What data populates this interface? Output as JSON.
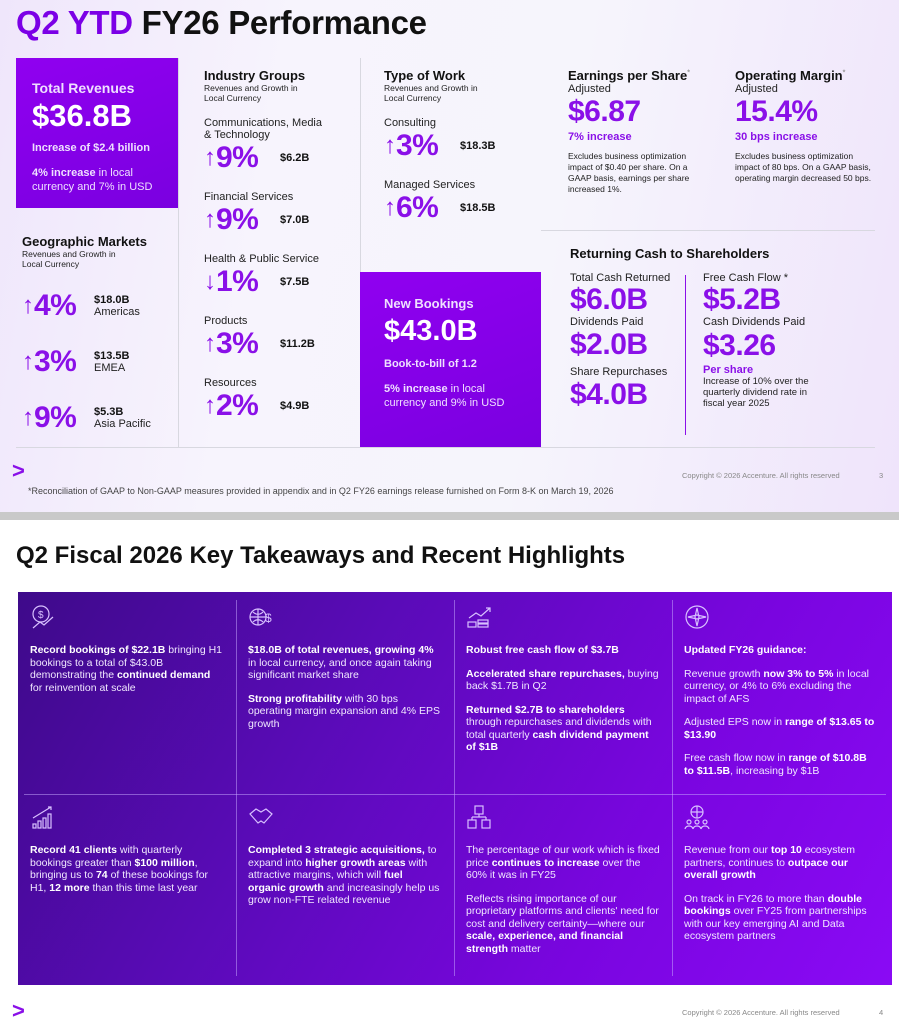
{
  "slide1": {
    "title_accent": "Q2 YTD",
    "title_rest": "FY26 Performance",
    "total_revenues": {
      "label": "Total Revenues",
      "value": "$36.8B",
      "increase": "Increase of $2.4 billion",
      "growth_bold": "4% increase",
      "growth_rest": " in local currency and 7% in USD"
    },
    "geographic": {
      "title": "Geographic Markets",
      "subtitle": "Revenues and Growth in Local Currency",
      "items": [
        {
          "dir": "up",
          "pct": "4%",
          "amount": "$18.0B",
          "name": "Americas"
        },
        {
          "dir": "up",
          "pct": "3%",
          "amount": "$13.5B",
          "name": "EMEA"
        },
        {
          "dir": "up",
          "pct": "9%",
          "amount": "$5.3B",
          "name": "Asia Pacific"
        }
      ]
    },
    "industry": {
      "title": "Industry Groups",
      "subtitle": "Revenues and Growth in Local Currency",
      "items": [
        {
          "name": "Communications, Media & Technology",
          "dir": "up",
          "pct": "9%",
          "amount": "$6.2B"
        },
        {
          "name": "Financial Services",
          "dir": "up",
          "pct": "9%",
          "amount": "$7.0B"
        },
        {
          "name": "Health & Public Service",
          "dir": "down",
          "pct": "1%",
          "amount": "$7.5B"
        },
        {
          "name": "Products",
          "dir": "up",
          "pct": "3%",
          "amount": "$11.2B"
        },
        {
          "name": "Resources",
          "dir": "up",
          "pct": "2%",
          "amount": "$4.9B"
        }
      ]
    },
    "work": {
      "title": "Type of Work",
      "subtitle": "Revenues and Growth in Local Currency",
      "items": [
        {
          "name": "Consulting",
          "dir": "up",
          "pct": "3%",
          "amount": "$18.3B"
        },
        {
          "name": "Managed Services",
          "dir": "up",
          "pct": "6%",
          "amount": "$18.5B"
        }
      ]
    },
    "bookings": {
      "label": "New Bookings",
      "value": "$43.0B",
      "ratio": "Book-to-bill of 1.2",
      "growth_bold": "5% increase",
      "growth_rest": " in local currency and 9% in USD"
    },
    "eps": {
      "title": "Earnings per Share",
      "mark": "*",
      "sub": "Adjusted",
      "value": "$6.87",
      "change": "7% increase",
      "note": "Excludes business optimization impact of $0.40 per share. On a GAAP basis, earnings per share increased 1%."
    },
    "margin": {
      "title": "Operating Margin",
      "mark": "*",
      "sub": "Adjusted",
      "value": "15.4%",
      "change": "30 bps increase",
      "note": "Excludes business optimization impact of 80 bps. On a GAAP basis, operating margin decreased 50 bps."
    },
    "cash": {
      "title": "Returning Cash to Shareholders",
      "total_label": "Total Cash Returned",
      "total": "$6.0B",
      "div_label": "Dividends Paid",
      "div": "$2.0B",
      "rep_label": "Share Repurchases",
      "rep": "$4.0B",
      "fcf_label": "Free Cash Flow *",
      "fcf": "$5.2B",
      "cdiv_label": "Cash Dividends Paid",
      "cdiv": "$3.26",
      "per_share": "Per share",
      "cdiv_note": "Increase of 10% over the quarterly dividend rate in fiscal year 2025"
    },
    "logo": ">",
    "copyright": "Copyright © 2026 Accenture. All rights reserved",
    "page": "3",
    "footnote": "*Reconciliation of GAAP to Non-GAAP measures provided in appendix and in Q2 FY26 earnings release furnished on Form 8-K on March 19, 2026"
  },
  "slide2": {
    "title": "Q2 Fiscal 2026 Key Takeaways and Recent Highlights",
    "cells": [
      {
        "icon": "dollar-growth-icon",
        "paras": [
          [
            {
              "t": "Record bookings of $22.1B",
              "b": true
            },
            {
              "t": " bringing H1 bookings to a total of $43.0B demonstrating the "
            },
            {
              "t": "continued demand",
              "b": true
            },
            {
              "t": " for reinvention at scale"
            }
          ]
        ]
      },
      {
        "icon": "globe-dollar-icon",
        "paras": [
          [
            {
              "t": "$18.0B of total revenues, growing 4%",
              "b": true
            },
            {
              "t": " in local currency, and once again taking significant market share"
            }
          ],
          [
            {
              "t": "Strong profitability",
              "b": true
            },
            {
              "t": " with 30 bps operating margin expansion and 4% EPS growth"
            }
          ]
        ]
      },
      {
        "icon": "cash-growth-icon",
        "paras": [
          [
            {
              "t": "Robust free cash flow of $3.7B",
              "b": true
            }
          ],
          [
            {
              "t": "Accelerated share repurchases,",
              "b": true
            },
            {
              "t": " buying back $1.7B in Q2"
            }
          ],
          [
            {
              "t": "Returned $2.7B to shareholders",
              "b": true
            },
            {
              "t": " through repurchases and dividends with total quarterly "
            },
            {
              "t": "cash dividend payment of $1B",
              "b": true
            }
          ]
        ]
      },
      {
        "icon": "compass-icon",
        "paras": [
          [
            {
              "t": "Updated FY26 guidance:",
              "b": true
            }
          ],
          [
            {
              "t": "Revenue growth "
            },
            {
              "t": "now 3% to 5%",
              "b": true
            },
            {
              "t": " in local currency, or 4% to 6% excluding the impact of AFS"
            }
          ],
          [
            {
              "t": "Adjusted EPS now in "
            },
            {
              "t": "range of $13.65 to $13.90",
              "b": true
            }
          ],
          [
            {
              "t": "Free cash flow now in "
            },
            {
              "t": "range of $10.8B to $11.5B",
              "b": true
            },
            {
              "t": ", increasing by $1B"
            }
          ]
        ]
      },
      {
        "icon": "bar-chart-growth-icon",
        "paras": [
          [
            {
              "t": "Record 41 clients",
              "b": true
            },
            {
              "t": " with quarterly bookings greater than "
            },
            {
              "t": "$100 million",
              "b": true
            },
            {
              "t": ", bringing us to "
            },
            {
              "t": "74",
              "b": true
            },
            {
              "t": " of these bookings for H1, "
            },
            {
              "t": "12 more",
              "b": true
            },
            {
              "t": " than this time last year"
            }
          ]
        ]
      },
      {
        "icon": "handshake-icon",
        "paras": [
          [
            {
              "t": "Completed 3 strategic acquisitions,",
              "b": true
            },
            {
              "t": " to expand into "
            },
            {
              "t": "higher growth areas",
              "b": true
            },
            {
              "t": " with attractive margins, which will "
            },
            {
              "t": "fuel organic growth",
              "b": true
            },
            {
              "t": " and increasingly help us grow non-FTE related revenue"
            }
          ]
        ]
      },
      {
        "icon": "hierarchy-icon",
        "paras": [
          [
            {
              "t": "The percentage of our work which is fixed price "
            },
            {
              "t": "continues to increase",
              "b": true
            },
            {
              "t": " over the 60% it was in FY25"
            }
          ],
          [
            {
              "t": "Reflects rising importance of our proprietary platforms and clients' need for cost and delivery certainty—where our "
            },
            {
              "t": "scale, experience, and financial strength",
              "b": true
            },
            {
              "t": " matter"
            }
          ]
        ]
      },
      {
        "icon": "globe-people-icon",
        "paras": [
          [
            {
              "t": "Revenue from our "
            },
            {
              "t": "top 10",
              "b": true
            },
            {
              "t": " ecosystem partners, continues to "
            },
            {
              "t": "outpace our overall growth",
              "b": true
            }
          ],
          [
            {
              "t": "On track in FY26 to more than "
            },
            {
              "t": "double bookings",
              "b": true
            },
            {
              "t": " over FY25 from partnerships with our key emerging AI and Data ecosystem partners"
            }
          ]
        ]
      }
    ],
    "logo": ">",
    "copyright": "Copyright © 2026 Accenture. All rights reserved",
    "page": "4"
  },
  "colors": {
    "accent": "#8a10e8",
    "panel": "#6a08cc"
  }
}
